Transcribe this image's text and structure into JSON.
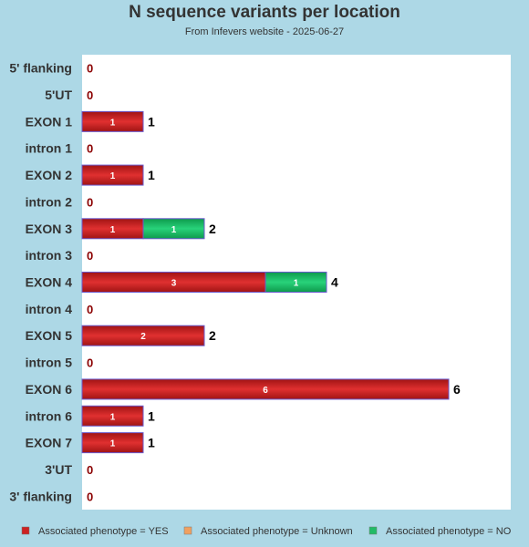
{
  "chart_data": {
    "type": "bar",
    "orientation": "horizontal",
    "stacked": true,
    "title": "N sequence variants per location",
    "subtitle": "From Infevers website - 2025-06-27",
    "categories": [
      "5' flanking",
      "5'UT",
      "EXON 1",
      "intron 1",
      "EXON 2",
      "intron 2",
      "EXON 3",
      "intron 3",
      "EXON 4",
      "intron 4",
      "EXON 5",
      "intron 5",
      "EXON 6",
      "intron 6",
      "EXON 7",
      "3'UT",
      "3' flanking"
    ],
    "series": [
      {
        "name": "Associated phenotype = YES",
        "color": "#cc2222",
        "values": [
          0,
          0,
          1,
          0,
          1,
          0,
          1,
          0,
          3,
          0,
          2,
          0,
          6,
          1,
          1,
          0,
          0
        ]
      },
      {
        "name": "Associated phenotype = Unknown",
        "color": "#f0a060",
        "values": [
          0,
          0,
          0,
          0,
          0,
          0,
          0,
          0,
          0,
          0,
          0,
          0,
          0,
          0,
          0,
          0,
          0
        ]
      },
      {
        "name": "Associated phenotype = NO",
        "color": "#22bb66",
        "values": [
          0,
          0,
          0,
          0,
          0,
          0,
          1,
          0,
          1,
          0,
          0,
          0,
          0,
          0,
          0,
          0,
          0
        ]
      }
    ],
    "xlim": [
      0,
      7
    ],
    "grid": false,
    "legend_position": "bottom"
  }
}
